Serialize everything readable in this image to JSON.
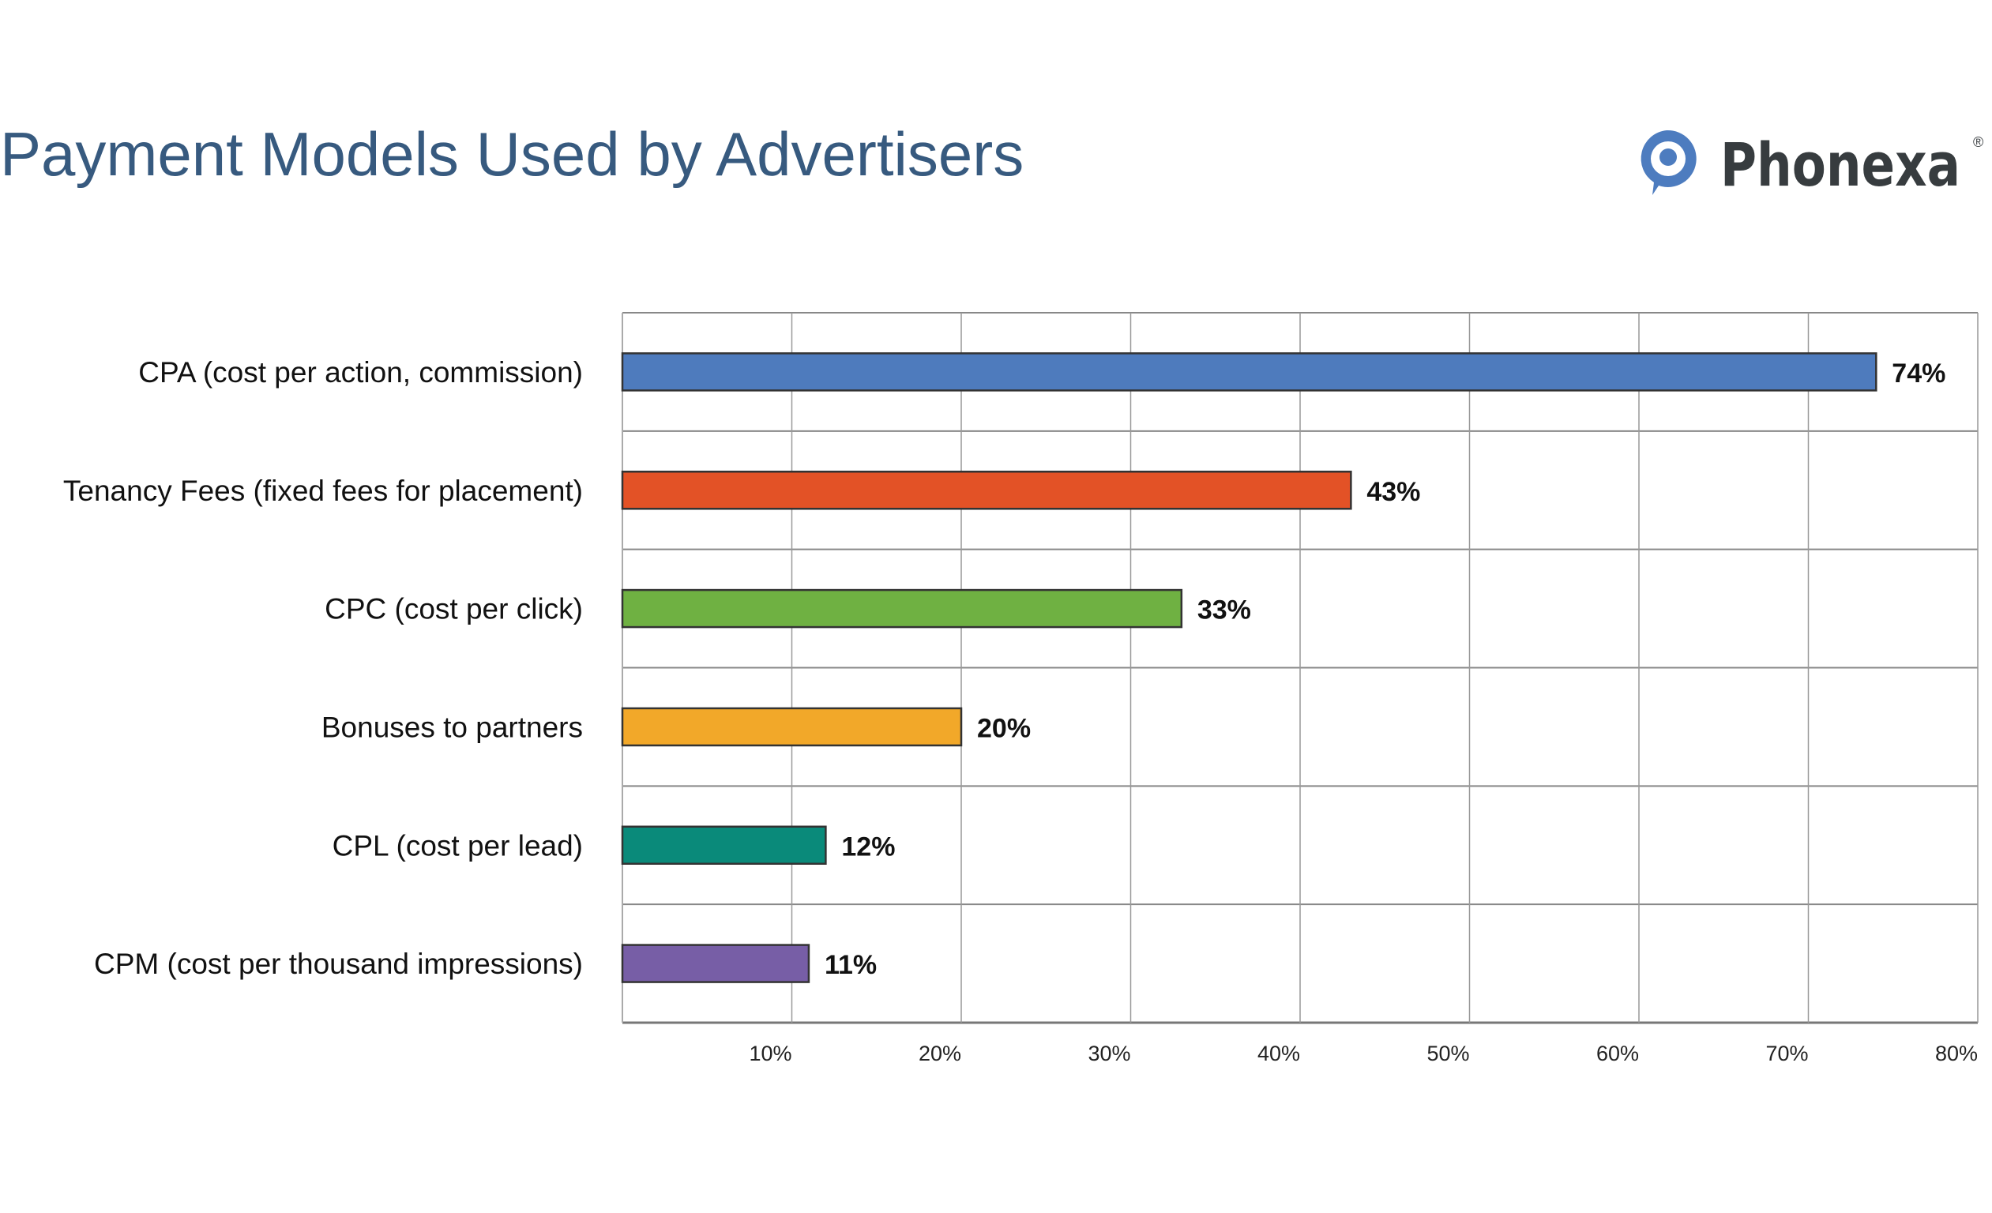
{
  "header": {
    "title": "Payment Models Used by Advertisers"
  },
  "logo": {
    "text": "Phonexa",
    "mark": "®",
    "icon": "speech-bubble-pin-icon",
    "color": "#4d7cbf",
    "text_color": "#373c3f"
  },
  "chart_data": {
    "type": "bar",
    "orientation": "horizontal",
    "title": "Payment Models Used by Advertisers",
    "categories": [
      "CPA (cost per action, commission)",
      "Tenancy Fees (fixed fees for placement)",
      "CPC (cost per click)",
      "Bonuses to partners",
      "CPL (cost per lead)",
      "CPM (cost per thousand impressions)"
    ],
    "values": [
      74,
      43,
      33,
      20,
      12,
      11
    ],
    "data_labels": [
      "74%",
      "43%",
      "33%",
      "20%",
      "12%",
      "11%"
    ],
    "colors": [
      "#4e7bbd",
      "#e35226",
      "#6fb142",
      "#f2a829",
      "#0a8a7a",
      "#775ea6"
    ],
    "xlim": [
      0,
      80
    ],
    "xticks": [
      10,
      20,
      30,
      40,
      50,
      60,
      70,
      80
    ],
    "xtick_labels": [
      "10%",
      "20%",
      "30%",
      "40%",
      "50%",
      "60%",
      "70%",
      "80%"
    ],
    "grid": true,
    "xlabel": "",
    "ylabel": ""
  }
}
